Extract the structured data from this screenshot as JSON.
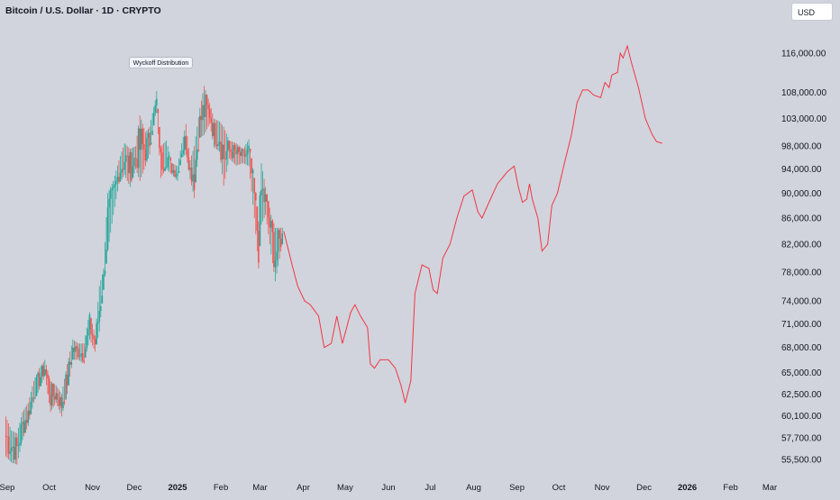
{
  "header": {
    "title": "Bitcoin / U.S. Dollar · 1D · CRYPTO",
    "currency_label": "USD"
  },
  "colors": {
    "background": "#d1d4dc",
    "up": "#26a69a",
    "down": "#ef5350",
    "projection": "#f23645",
    "text": "#131722"
  },
  "chart_data": {
    "type": "line",
    "title": "Bitcoin / U.S. Dollar · 1D · CRYPTO",
    "xlabel": "",
    "ylabel": "",
    "ylim": [
      53500,
      121000
    ],
    "y_scale": "log",
    "x_tick_labels": [
      "Sep",
      "Oct",
      "Nov",
      "Dec",
      "2025",
      "Feb",
      "Mar",
      "Apr",
      "May",
      "Jun",
      "Jul",
      "Aug",
      "Sep",
      "Oct",
      "Nov",
      "Dec",
      "2026",
      "Feb",
      "Mar"
    ],
    "x_ticks": [
      "2024-09-01",
      "2024-10-01",
      "2024-11-01",
      "2024-12-01",
      "2025-01-01",
      "2025-02-01",
      "2025-03-01",
      "2025-04-01",
      "2025-05-01",
      "2025-06-01",
      "2025-07-01",
      "2025-08-01",
      "2025-09-01",
      "2025-10-01",
      "2025-11-01",
      "2025-12-01",
      "2026-01-01",
      "2026-02-01",
      "2026-03-01"
    ],
    "y_tick_labels": [
      "116,000.00",
      "108,000.00",
      "103,000.00",
      "98,000.00",
      "94,000.00",
      "90,000.00",
      "86,000.00",
      "82,000.00",
      "78,000.00",
      "74,000.00",
      "71,000.00",
      "68,000.00",
      "65,000.00",
      "62,500.00",
      "60,100.00",
      "57,700.00",
      "55,500.00"
    ],
    "y_ticks": [
      116000,
      108000,
      103000,
      98000,
      94000,
      90000,
      86000,
      82000,
      78000,
      74000,
      71000,
      68000,
      65000,
      62500,
      60100,
      57700,
      55500
    ],
    "annotations": [
      {
        "text": "Wyckoff Distribution",
        "x": "2024-12-20",
        "y": 114000
      }
    ],
    "grid": false,
    "series": [
      {
        "type": "candlestick",
        "points": [
          [
            "2024-08-31",
            60000,
            55800
          ],
          [
            "2024-09-04",
            58500,
            55200
          ],
          [
            "2024-09-08",
            58200,
            55000
          ],
          [
            "2024-09-12",
            60500,
            57500
          ],
          [
            "2024-09-16",
            61500,
            59000
          ],
          [
            "2024-09-20",
            64000,
            61500
          ],
          [
            "2024-09-24",
            65500,
            63000
          ],
          [
            "2024-09-28",
            66500,
            64500
          ],
          [
            "2024-10-02",
            64000,
            60500
          ],
          [
            "2024-10-06",
            63500,
            61500
          ],
          [
            "2024-10-10",
            62500,
            60000
          ],
          [
            "2024-10-14",
            66000,
            62500
          ],
          [
            "2024-10-18",
            69000,
            66500
          ],
          [
            "2024-10-22",
            68500,
            66500
          ],
          [
            "2024-10-26",
            68500,
            66000
          ],
          [
            "2024-10-30",
            72500,
            69000
          ],
          [
            "2024-11-03",
            69500,
            67500
          ],
          [
            "2024-11-06",
            76000,
            70000
          ],
          [
            "2024-11-09",
            78500,
            75500
          ],
          [
            "2024-11-12",
            90000,
            81000
          ],
          [
            "2024-11-16",
            92000,
            86500
          ],
          [
            "2024-11-20",
            95500,
            91500
          ],
          [
            "2024-11-24",
            98500,
            93000
          ],
          [
            "2024-11-28",
            97500,
            91000
          ],
          [
            "2024-12-02",
            98000,
            94000
          ],
          [
            "2024-12-05",
            103600,
            92000
          ],
          [
            "2024-12-09",
            100500,
            94500
          ],
          [
            "2024-12-12",
            101500,
            96500
          ],
          [
            "2024-12-16",
            106500,
            103500
          ],
          [
            "2024-12-17",
            108300,
            104000
          ],
          [
            "2024-12-20",
            98000,
            92500
          ],
          [
            "2024-12-24",
            99000,
            94000
          ],
          [
            "2024-12-28",
            95000,
            93000
          ],
          [
            "2025-01-01",
            94500,
            92000
          ],
          [
            "2025-01-04",
            98500,
            96000
          ],
          [
            "2025-01-07",
            102000,
            96500
          ],
          [
            "2025-01-10",
            95500,
            92300
          ],
          [
            "2025-01-13",
            98000,
            89200
          ],
          [
            "2025-01-17",
            105000,
            99500
          ],
          [
            "2025-01-20",
            109300,
            100000
          ],
          [
            "2025-01-24",
            106000,
            102000
          ],
          [
            "2025-01-27",
            103000,
            97800
          ],
          [
            "2025-01-31",
            102500,
            97000
          ],
          [
            "2025-02-03",
            101500,
            91200
          ],
          [
            "2025-02-07",
            99000,
            95800
          ],
          [
            "2025-02-12",
            98500,
            94600
          ],
          [
            "2025-02-17",
            97500,
            95000
          ],
          [
            "2025-02-21",
            99200,
            94500
          ],
          [
            "2025-02-25",
            92500,
            86000
          ],
          [
            "2025-02-28",
            85500,
            78500
          ],
          [
            "2025-03-02",
            95000,
            85000
          ],
          [
            "2025-03-05",
            91000,
            86500
          ],
          [
            "2025-03-09",
            86500,
            80500
          ],
          [
            "2025-03-12",
            84500,
            76700
          ],
          [
            "2025-03-17",
            84500,
            82000
          ]
        ]
      },
      {
        "type": "line",
        "points": [
          [
            "2025-03-18",
            84000
          ],
          [
            "2025-03-24",
            79000
          ],
          [
            "2025-03-28",
            76000
          ],
          [
            "2025-04-02",
            74000
          ],
          [
            "2025-04-06",
            73500
          ],
          [
            "2025-04-12",
            72000
          ],
          [
            "2025-04-16",
            68000
          ],
          [
            "2025-04-21",
            68500
          ],
          [
            "2025-04-25",
            72000
          ],
          [
            "2025-04-29",
            68500
          ],
          [
            "2025-05-05",
            72500
          ],
          [
            "2025-05-08",
            73500
          ],
          [
            "2025-05-12",
            72000
          ],
          [
            "2025-05-17",
            70500
          ],
          [
            "2025-05-19",
            66000
          ],
          [
            "2025-05-22",
            65500
          ],
          [
            "2025-05-26",
            66500
          ],
          [
            "2025-06-01",
            66500
          ],
          [
            "2025-06-06",
            65500
          ],
          [
            "2025-06-10",
            63500
          ],
          [
            "2025-06-13",
            61500
          ],
          [
            "2025-06-17",
            64000
          ],
          [
            "2025-06-20",
            75000
          ],
          [
            "2025-06-25",
            79000
          ],
          [
            "2025-06-30",
            78500
          ],
          [
            "2025-07-03",
            75500
          ],
          [
            "2025-07-06",
            75000
          ],
          [
            "2025-07-10",
            80000
          ],
          [
            "2025-07-15",
            82000
          ],
          [
            "2025-07-20",
            86000
          ],
          [
            "2025-07-25",
            89500
          ],
          [
            "2025-07-31",
            90500
          ],
          [
            "2025-08-04",
            87000
          ],
          [
            "2025-08-07",
            86000
          ],
          [
            "2025-08-12",
            88500
          ],
          [
            "2025-08-18",
            91500
          ],
          [
            "2025-08-25",
            93500
          ],
          [
            "2025-08-30",
            94500
          ],
          [
            "2025-09-02",
            91000
          ],
          [
            "2025-09-05",
            88500
          ],
          [
            "2025-09-08",
            89000
          ],
          [
            "2025-09-10",
            91500
          ],
          [
            "2025-09-12",
            89000
          ],
          [
            "2025-09-16",
            86000
          ],
          [
            "2025-09-19",
            81000
          ],
          [
            "2025-09-23",
            82000
          ],
          [
            "2025-09-26",
            88000
          ],
          [
            "2025-09-30",
            90000
          ],
          [
            "2025-10-05",
            95000
          ],
          [
            "2025-10-10",
            100000
          ],
          [
            "2025-10-14",
            106000
          ],
          [
            "2025-10-18",
            108500
          ],
          [
            "2025-10-22",
            108500
          ],
          [
            "2025-10-26",
            107500
          ],
          [
            "2025-10-31",
            107000
          ],
          [
            "2025-11-03",
            110000
          ],
          [
            "2025-11-06",
            109000
          ],
          [
            "2025-11-08",
            111500
          ],
          [
            "2025-11-12",
            112000
          ],
          [
            "2025-11-14",
            116000
          ],
          [
            "2025-11-16",
            115000
          ],
          [
            "2025-11-19",
            117500
          ],
          [
            "2025-11-22",
            114000
          ],
          [
            "2025-11-27",
            109000
          ],
          [
            "2025-12-02",
            103000
          ],
          [
            "2025-12-07",
            100000
          ],
          [
            "2025-12-10",
            98800
          ],
          [
            "2025-12-14",
            98500
          ]
        ]
      }
    ]
  }
}
